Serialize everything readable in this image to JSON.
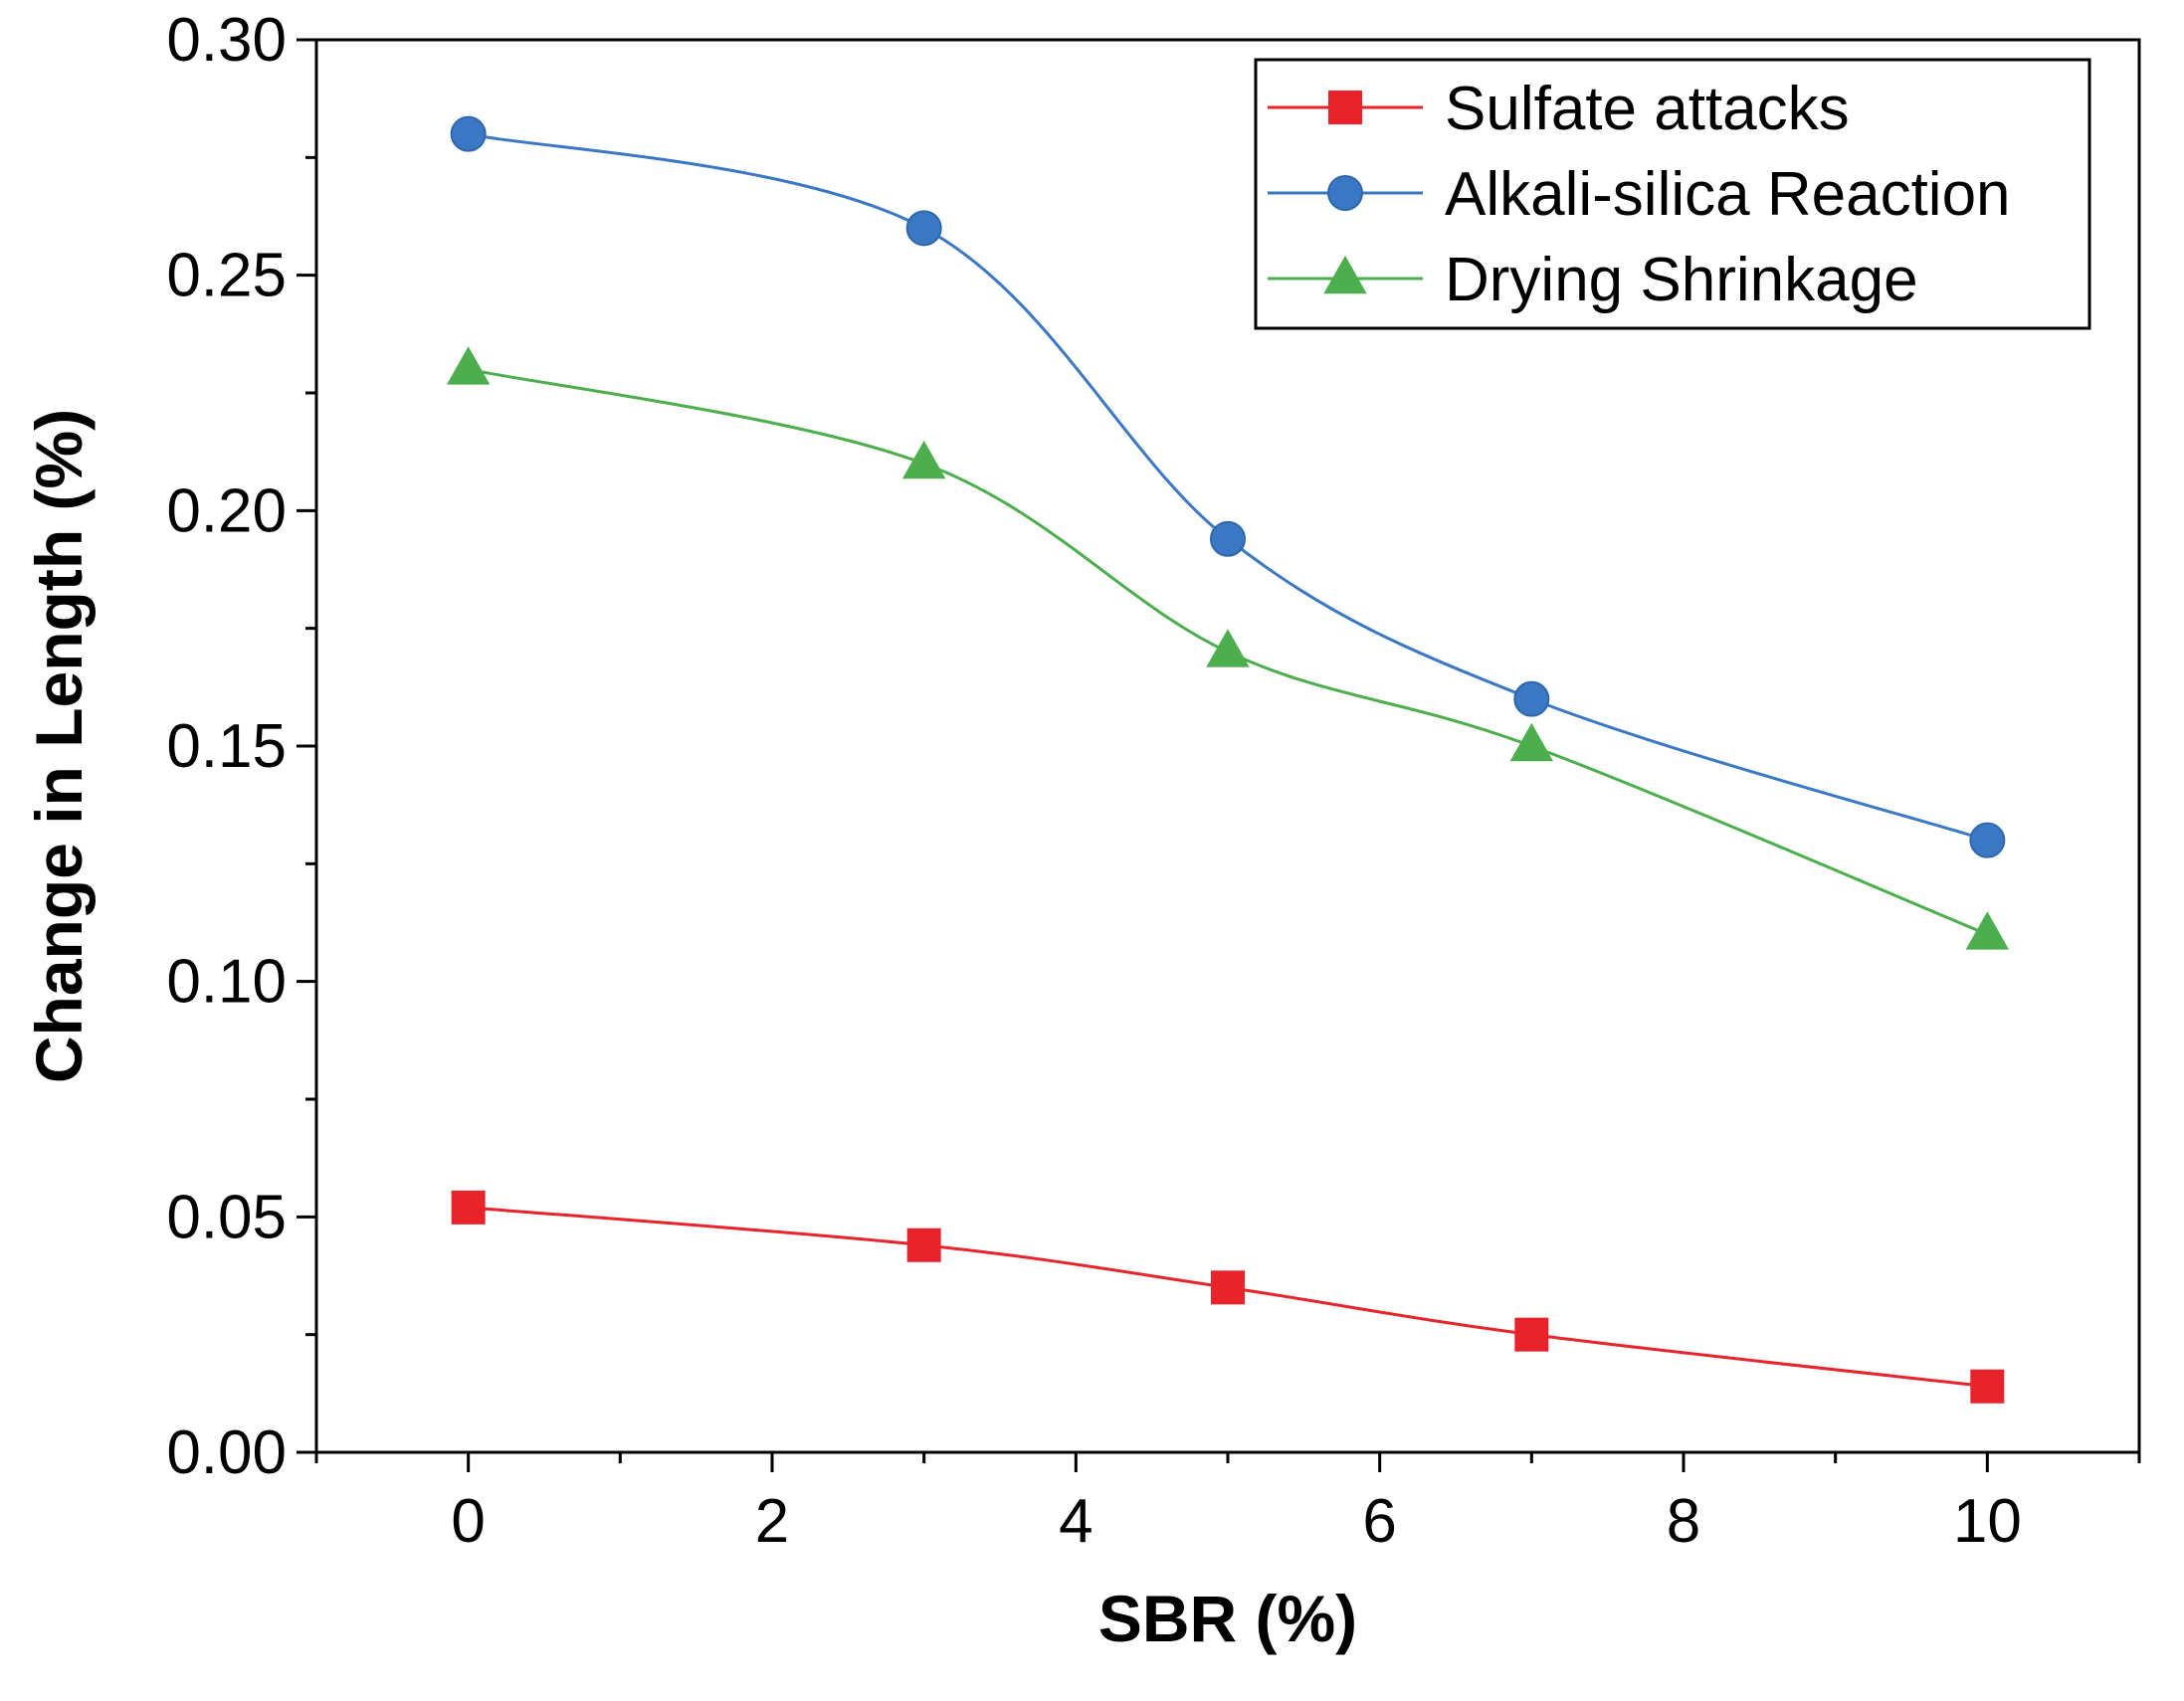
{
  "chart_data": {
    "type": "line",
    "title": "",
    "xlabel": "SBR (%)",
    "ylabel": "Change in Length (%)",
    "xlim": [
      -1,
      11
    ],
    "ylim": [
      0.0,
      0.3
    ],
    "x_ticks": [
      0,
      2,
      4,
      6,
      8,
      10
    ],
    "x_tick_labels": [
      "0",
      "2",
      "4",
      "6",
      "8",
      "10"
    ],
    "y_ticks": [
      0.0,
      0.05,
      0.1,
      0.15,
      0.2,
      0.25,
      0.3
    ],
    "y_tick_labels": [
      "0.00",
      "0.05",
      "0.10",
      "0.15",
      "0.20",
      "0.25",
      "0.30"
    ],
    "grid": false,
    "legend_position": "top-right",
    "x": [
      0,
      3,
      5,
      7,
      10
    ],
    "series": [
      {
        "name": "Sulfate attacks",
        "marker": "square",
        "color": "#e8232a",
        "values": [
          0.052,
          0.044,
          0.035,
          0.025,
          0.014
        ]
      },
      {
        "name": "Alkali-silica Reaction",
        "marker": "circle",
        "color": "#3b78c4",
        "values": [
          0.28,
          0.26,
          0.194,
          0.16,
          0.13
        ]
      },
      {
        "name": "Drying Shrinkage",
        "marker": "triangle",
        "color": "#4cae4c",
        "values": [
          0.23,
          0.21,
          0.17,
          0.15,
          0.11
        ]
      }
    ]
  }
}
